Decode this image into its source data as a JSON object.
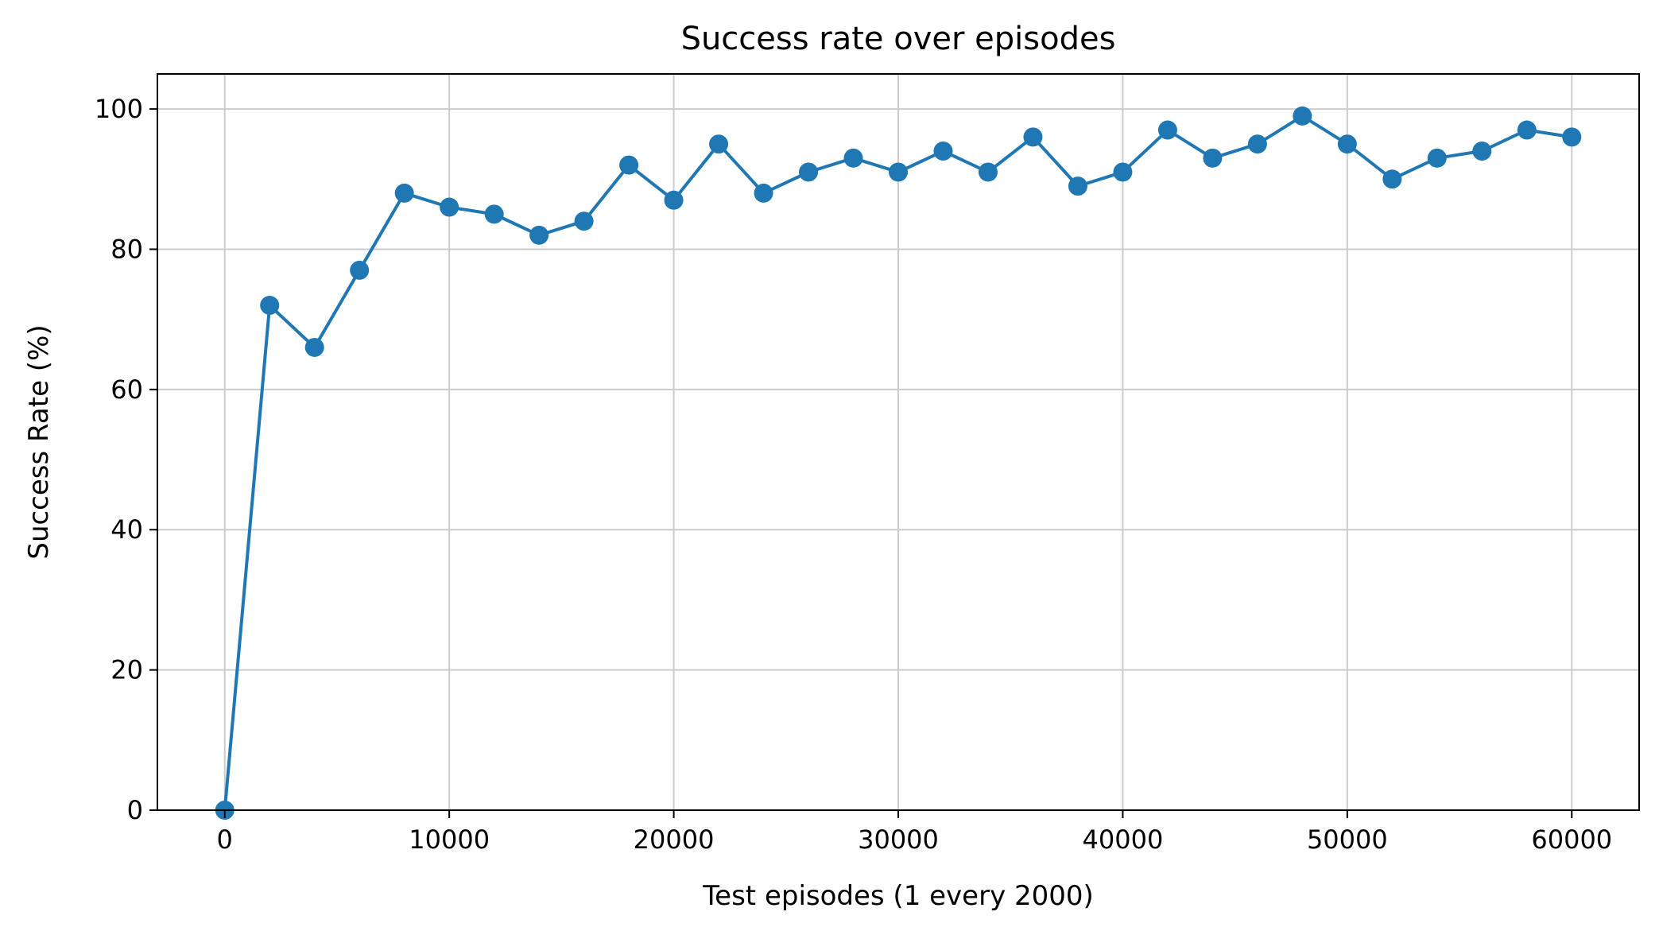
{
  "chart_data": {
    "type": "line",
    "title": "Success rate over episodes",
    "xlabel": "Test episodes (1 every 2000)",
    "ylabel": "Success Rate (%)",
    "xlim": [
      -3000,
      63000
    ],
    "ylim": [
      0,
      105
    ],
    "xticks": [
      0,
      10000,
      20000,
      30000,
      40000,
      50000,
      60000
    ],
    "yticks": [
      0,
      20,
      40,
      60,
      80,
      100
    ],
    "grid": true,
    "line_color": "#1f77b4",
    "marker": "circle",
    "series": [
      {
        "x": [
          0,
          2000,
          4000,
          6000,
          8000,
          10000,
          12000,
          14000,
          16000,
          18000,
          20000,
          22000,
          24000,
          26000,
          28000,
          30000,
          32000,
          34000,
          36000,
          38000,
          40000,
          42000,
          44000,
          46000,
          48000,
          50000,
          52000,
          54000,
          56000,
          58000,
          60000
        ],
        "values": [
          0,
          72,
          66,
          77,
          88,
          86,
          85,
          82,
          84,
          92,
          87,
          95,
          88,
          91,
          93,
          91,
          94,
          91,
          96,
          89,
          91,
          97,
          93,
          95,
          99,
          95,
          90,
          93,
          94,
          97,
          96
        ]
      }
    ]
  }
}
